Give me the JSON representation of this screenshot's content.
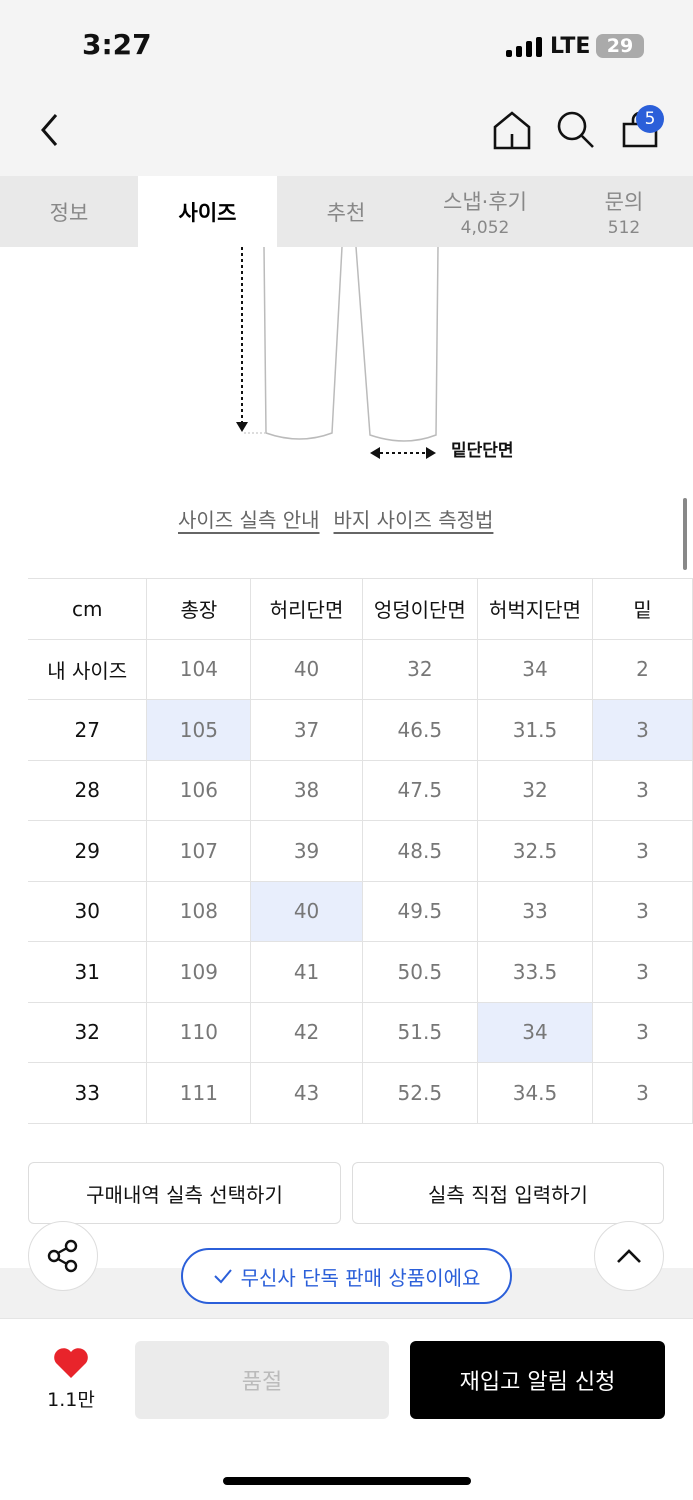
{
  "status": {
    "time": "3:27",
    "network": "LTE",
    "battery": "29"
  },
  "header": {
    "cart_count": "5"
  },
  "tabs": [
    {
      "label": "정보"
    },
    {
      "label": "사이즈",
      "active": true
    },
    {
      "label": "추천"
    },
    {
      "label": "스냅·후기",
      "count": "4,052"
    },
    {
      "label": "문의",
      "count": "512"
    }
  ],
  "diagram": {
    "hem_label": "밑단단면"
  },
  "links": {
    "guide": "사이즈 실측 안내",
    "howto": "바지 사이즈 측정법"
  },
  "size_table": {
    "headers": [
      "cm",
      "총장",
      "허리단면",
      "엉덩이단면",
      "허벅지단면",
      "밑"
    ],
    "rows": [
      {
        "cells": [
          "내 사이즈",
          "104",
          "40",
          "32",
          "34",
          "2"
        ],
        "hl": []
      },
      {
        "cells": [
          "27",
          "105",
          "37",
          "46.5",
          "31.5",
          "3"
        ],
        "hl": [
          1,
          5
        ]
      },
      {
        "cells": [
          "28",
          "106",
          "38",
          "47.5",
          "32",
          "3"
        ],
        "hl": []
      },
      {
        "cells": [
          "29",
          "107",
          "39",
          "48.5",
          "32.5",
          "3"
        ],
        "hl": []
      },
      {
        "cells": [
          "30",
          "108",
          "40",
          "49.5",
          "33",
          "3"
        ],
        "hl": [
          2
        ]
      },
      {
        "cells": [
          "31",
          "109",
          "41",
          "50.5",
          "33.5",
          "3"
        ],
        "hl": []
      },
      {
        "cells": [
          "32",
          "110",
          "42",
          "51.5",
          "34",
          "3"
        ],
        "hl": [
          4
        ]
      },
      {
        "cells": [
          "33",
          "111",
          "43",
          "52.5",
          "34.5",
          "3"
        ],
        "hl": []
      }
    ]
  },
  "buttons": {
    "purchase_history": "구매내역 실측 선택하기",
    "manual_input": "실측 직접 입력하기"
  },
  "exclusive_badge": "무신사 단독 판매 상품이에요",
  "bottom_bar": {
    "likes": "1.1만",
    "sold_out": "품절",
    "restock": "재입고 알림 신청"
  },
  "colors": {
    "accent": "#2b5fd9",
    "highlight": "#e8eefc",
    "heart": "#e8242b"
  }
}
